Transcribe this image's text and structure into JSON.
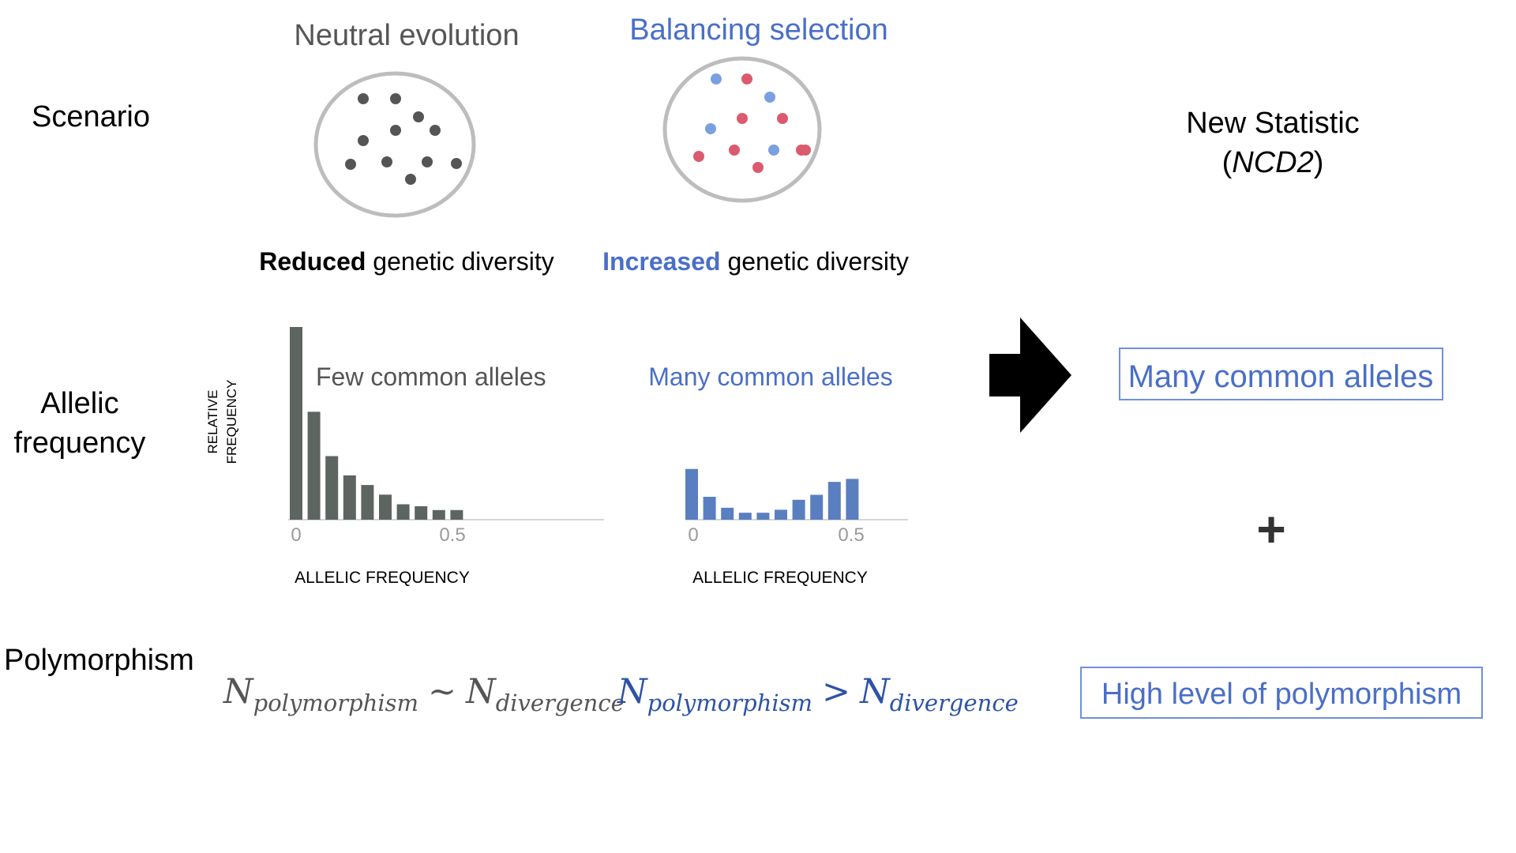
{
  "colors": {
    "black": "#000000",
    "gray_text": "#555555",
    "blue_text": "#4a6fc9",
    "blue_formula": "#2e53a6",
    "neutral_dot": "#555555",
    "blue_dot": "#7aa0e0",
    "red_dot": "#dc5a6e",
    "circle_stroke": "#bdbdbd",
    "gray_bar": "#5d6561",
    "blue_bar": "#5a7fc0",
    "axis_line": "#d6d6d6",
    "box_stroke": "#6f90dc"
  },
  "row_labels": {
    "scenario": "Scenario",
    "allelic_line1": "Allelic",
    "allelic_line2": "frequency",
    "polymorphism": "Polymorphism"
  },
  "neutral": {
    "title": "Neutral evolution",
    "diversity_bold": "Reduced",
    "diversity_rest": " genetic diversity",
    "dot_icon": "gray-dot",
    "dot_count": 11
  },
  "balancing": {
    "title": "Balancing selection",
    "diversity_bold": "Increased",
    "diversity_rest": " genetic diversity",
    "dot_icons": [
      "blue-dot",
      "red-dot"
    ],
    "blue_dot_count": 4,
    "red_dot_count": 8
  },
  "result": {
    "title_line1": "New Statistic",
    "title_line2_open": "(",
    "title_line2_italic": "NCD2",
    "title_line2_close": ")",
    "arrow_icon": "right-arrow",
    "box1": "Many common alleles",
    "plus": "+",
    "box2": "High level of polymorphism"
  },
  "chart_data": [
    {
      "type": "bar",
      "annotation": "Few common alleles",
      "ylabel_line1": "Relative",
      "ylabel_line2": "frequency",
      "xlabel": "Allelic Frequency",
      "x_tick_labels": [
        "0",
        "0.5"
      ],
      "bin_width": 0.05,
      "x_start": 0,
      "xlim": [
        0,
        1
      ],
      "ylim": [
        0,
        1
      ],
      "values": [
        1.0,
        0.56,
        0.33,
        0.23,
        0.18,
        0.13,
        0.08,
        0.07,
        0.05,
        0.05
      ],
      "color": "#5d6561"
    },
    {
      "type": "bar",
      "annotation": "Many common alleles",
      "xlabel": "Allelic Frequency",
      "x_tick_labels": [
        "0",
        "0.5"
      ],
      "bin_width": 0.05,
      "x_start": 0,
      "xlim": [
        0,
        0.65
      ],
      "ylim": [
        0,
        1
      ],
      "values": [
        0.51,
        0.23,
        0.12,
        0.07,
        0.07,
        0.1,
        0.2,
        0.25,
        0.38,
        0.41
      ],
      "color": "#5a7fc0"
    }
  ],
  "formulas": {
    "neutral": {
      "N1": "N",
      "sub1": "polymorphism",
      "op": "~",
      "N2": "N",
      "sub2": "divergence"
    },
    "balancing": {
      "N1": "N",
      "sub1": "polymorphism",
      "op": ">",
      "N2": "N",
      "sub2": "divergence"
    }
  }
}
